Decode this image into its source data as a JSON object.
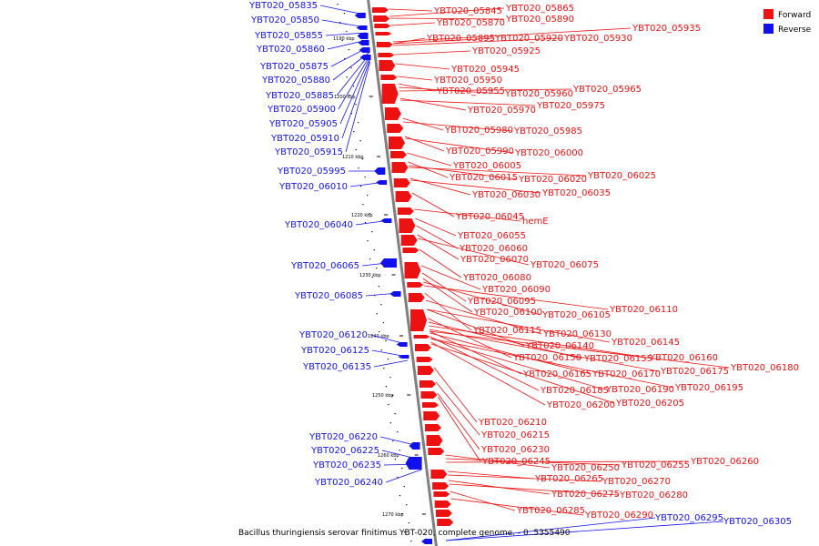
{
  "caption": "Bacillus thuringiensis serovar finitimus YBT-020, complete genome. - 0..5355490",
  "legend": [
    {
      "label": "Forward",
      "color": "#ee1111"
    },
    {
      "label": "Reverse",
      "color": "#1111ee"
    }
  ],
  "colors": {
    "forward": "#ee1111",
    "reverse": "#1111ee",
    "axis": "#808080"
  },
  "ticks": [
    "1190 kbp",
    "1200 kbp",
    "1210 kbp",
    "1220 kbp",
    "1230 kbp",
    "1240 kbp",
    "1250 kbp",
    "1260 kbp",
    "1270 kbp"
  ],
  "reverse_genes": [
    "YBT020_05835",
    "YBT020_05850",
    "YBT020_05855",
    "YBT020_05860",
    "YBT020_05875",
    "YBT020_05880",
    "YBT020_05885",
    "YBT020_05900",
    "YBT020_05905",
    "YBT020_05910",
    "YBT020_05915",
    "YBT020_05995",
    "YBT020_06010",
    "YBT020_06040",
    "YBT020_06065",
    "YBT020_06085",
    "YBT020_06120",
    "YBT020_06125",
    "YBT020_06135",
    "YBT020_06220",
    "YBT020_06225",
    "YBT020_06235",
    "YBT020_06240",
    "YBT020_06295",
    "YBT020_06305"
  ],
  "forward_genes": [
    "YBT020_05845",
    "YBT020_05865",
    "YBT020_05870",
    "YBT020_05890",
    "YBT020_05935",
    "YBT020_05895",
    "YBT020_05920",
    "YBT020_05930",
    "YBT020_05925",
    "YBT020_05945",
    "YBT020_05950",
    "YBT020_05955",
    "YBT020_05960",
    "YBT020_05965",
    "YBT020_05975",
    "YBT020_05970",
    "YBT020_05980",
    "YBT020_05985",
    "YBT020_05990",
    "YBT020_06000",
    "YBT020_06005",
    "YBT020_06015",
    "YBT020_06020",
    "YBT020_06025",
    "YBT020_06035",
    "YBT020_06030",
    "YBT020_06045",
    "hemE",
    "YBT020_06055",
    "YBT020_06060",
    "YBT020_06070",
    "YBT020_06075",
    "YBT020_06080",
    "YBT020_06090",
    "YBT020_06095",
    "YBT020_06100",
    "YBT020_06105",
    "YBT020_06110",
    "YBT020_06115",
    "YBT020_06130",
    "YBT020_06145",
    "YBT020_06140",
    "YBT020_06150",
    "YBT020_06155",
    "YBT020_06160",
    "YBT020_06175",
    "YBT020_06180",
    "YBT020_06165",
    "YBT020_06170",
    "YBT020_06195",
    "YBT020_06185",
    "YBT020_06190",
    "YBT020_06200",
    "YBT020_06205",
    "YBT020_06210",
    "YBT020_06215",
    "YBT020_06230",
    "YBT020_06245",
    "YBT020_06250",
    "YBT020_06255",
    "YBT020_06260",
    "YBT020_06265",
    "YBT020_06270",
    "YBT020_06275",
    "YBT020_06280",
    "YBT020_06285",
    "YBT020_06290"
  ]
}
